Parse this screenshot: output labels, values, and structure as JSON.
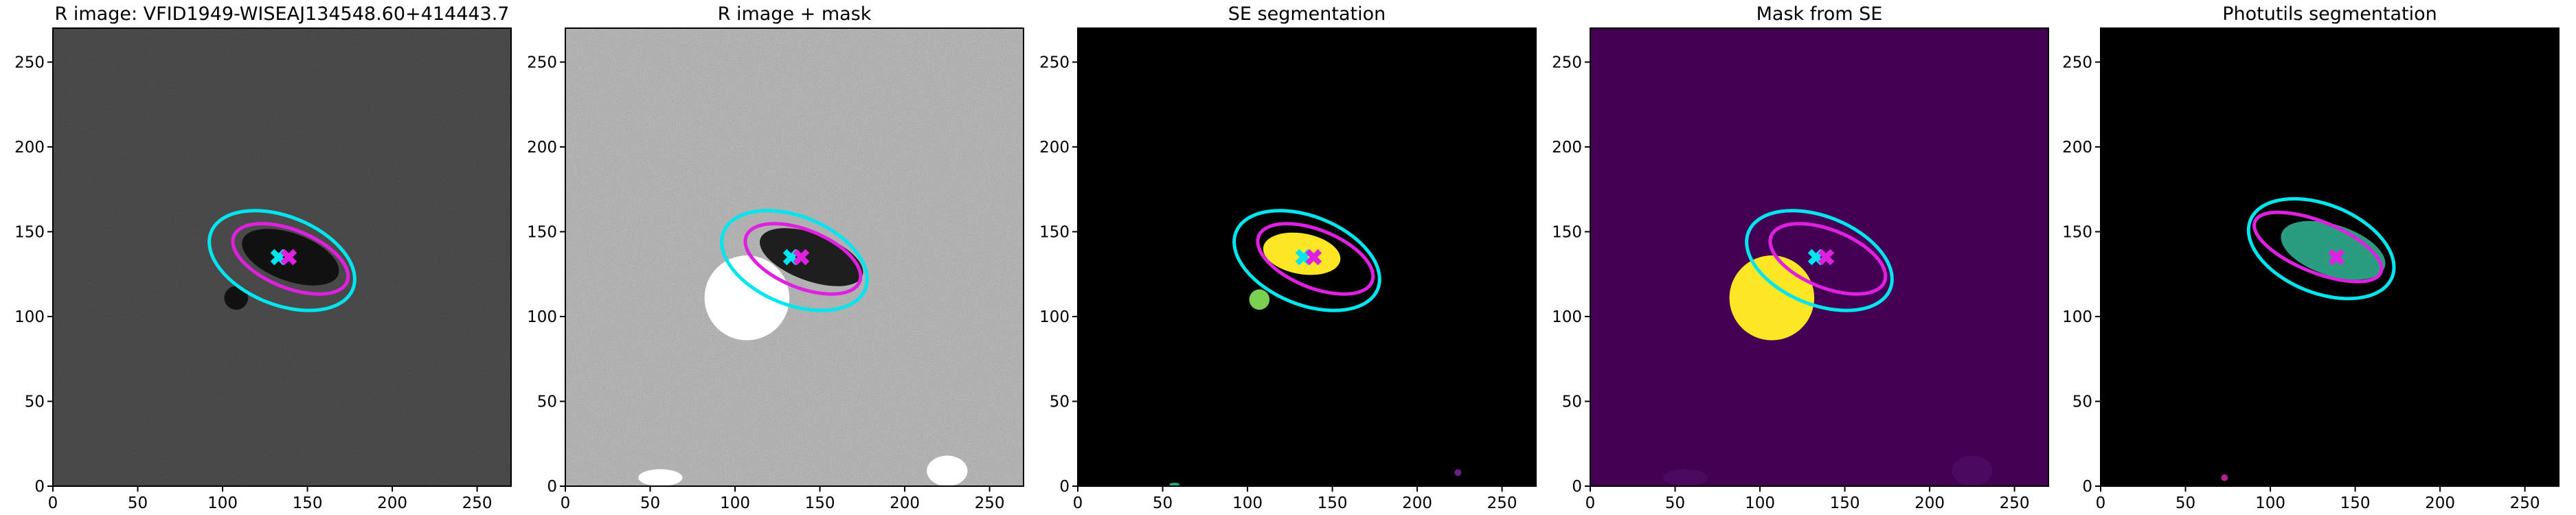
{
  "chart_data": [
    {
      "type": "image",
      "title": "R image: VFID1949-WISEAJ134548.60+414443.7",
      "background": "#3c3c3c",
      "noise": true,
      "xlim": [
        0,
        270
      ],
      "ylim": [
        0,
        270
      ],
      "xticks": [
        0,
        50,
        100,
        150,
        200,
        250
      ],
      "yticks": [
        0,
        50,
        100,
        150,
        200,
        250
      ],
      "regions": [
        {
          "cx": 140,
          "cy": 135,
          "rx": 30,
          "ry": 14,
          "angle": -20,
          "color": "#111111"
        },
        {
          "cx": 108,
          "cy": 111,
          "rx": 7,
          "ry": 7,
          "angle": 0,
          "color": "#111111"
        }
      ],
      "ellipses": [
        {
          "cx": 135,
          "cy": 133,
          "rx": 45,
          "ry": 26,
          "angle": -22,
          "color": "#00e5ee"
        },
        {
          "cx": 140,
          "cy": 134,
          "rx": 36,
          "ry": 17,
          "angle": -22,
          "color": "#e020e0"
        }
      ],
      "markers": [
        {
          "x": 133,
          "y": 135,
          "color": "#00e5ee"
        },
        {
          "x": 139,
          "y": 135,
          "color": "#e020e0"
        }
      ]
    },
    {
      "type": "image",
      "title": "R image + mask",
      "background": "#9c9c9c",
      "noise": true,
      "xlim": [
        0,
        270
      ],
      "ylim": [
        0,
        270
      ],
      "xticks": [
        0,
        50,
        100,
        150,
        200,
        250
      ],
      "yticks": [
        0,
        50,
        100,
        150,
        200,
        250
      ],
      "regions": [
        {
          "cx": 145,
          "cy": 135,
          "rx": 32,
          "ry": 14,
          "angle": -20,
          "color": "#1e1e1e"
        },
        {
          "cx": 107,
          "cy": 111,
          "rx": 25,
          "ry": 25,
          "angle": 0,
          "color": "#ffffff"
        },
        {
          "cx": 56,
          "cy": 5,
          "rx": 13,
          "ry": 5,
          "angle": 0,
          "color": "#ffffff"
        },
        {
          "cx": 225,
          "cy": 9,
          "rx": 12,
          "ry": 9,
          "angle": 0,
          "color": "#ffffff"
        }
      ],
      "ellipses": [
        {
          "cx": 135,
          "cy": 133,
          "rx": 45,
          "ry": 26,
          "angle": -22,
          "color": "#00e5ee"
        },
        {
          "cx": 140,
          "cy": 134,
          "rx": 36,
          "ry": 17,
          "angle": -22,
          "color": "#e020e0"
        }
      ],
      "markers": [
        {
          "x": 133,
          "y": 135,
          "color": "#00e5ee"
        },
        {
          "x": 139,
          "y": 135,
          "color": "#e020e0"
        }
      ]
    },
    {
      "type": "image",
      "title": "SE segmentation",
      "background": "#000000",
      "noise": false,
      "xlim": [
        0,
        270
      ],
      "ylim": [
        0,
        270
      ],
      "xticks": [
        0,
        50,
        100,
        150,
        200,
        250
      ],
      "yticks": [
        0,
        50,
        100,
        150,
        200,
        250
      ],
      "regions": [
        {
          "cx": 132,
          "cy": 137,
          "rx": 23,
          "ry": 12,
          "angle": -10,
          "color": "#fde725"
        },
        {
          "cx": 107,
          "cy": 110,
          "rx": 6,
          "ry": 6,
          "angle": 0,
          "color": "#7ad151"
        },
        {
          "cx": 57,
          "cy": 1,
          "rx": 3,
          "ry": 1,
          "angle": 0,
          "color": "#22a884"
        },
        {
          "cx": 224,
          "cy": 8,
          "rx": 2,
          "ry": 2,
          "angle": 0,
          "color": "#6a1f8a"
        }
      ],
      "ellipses": [
        {
          "cx": 135,
          "cy": 133,
          "rx": 45,
          "ry": 26,
          "angle": -22,
          "color": "#00e5ee"
        },
        {
          "cx": 140,
          "cy": 134,
          "rx": 36,
          "ry": 17,
          "angle": -22,
          "color": "#e020e0"
        }
      ],
      "markers": [
        {
          "x": 133,
          "y": 135,
          "color": "#00e5ee"
        },
        {
          "x": 139,
          "y": 135,
          "color": "#e020e0"
        }
      ]
    },
    {
      "type": "image",
      "title": "Mask from SE",
      "background": "#440154",
      "noise": false,
      "xlim": [
        0,
        270
      ],
      "ylim": [
        0,
        270
      ],
      "xticks": [
        0,
        50,
        100,
        150,
        200,
        250
      ],
      "yticks": [
        0,
        50,
        100,
        150,
        200,
        250
      ],
      "regions": [
        {
          "cx": 107,
          "cy": 111,
          "rx": 25,
          "ry": 25,
          "angle": 0,
          "color": "#fde725"
        },
        {
          "cx": 56,
          "cy": 5,
          "rx": 13,
          "ry": 5,
          "angle": 0,
          "color": "#4a0a5e"
        },
        {
          "cx": 225,
          "cy": 9,
          "rx": 12,
          "ry": 9,
          "angle": 0,
          "color": "#4a0a5e"
        }
      ],
      "ellipses": [
        {
          "cx": 135,
          "cy": 133,
          "rx": 45,
          "ry": 26,
          "angle": -22,
          "color": "#00e5ee"
        },
        {
          "cx": 140,
          "cy": 134,
          "rx": 36,
          "ry": 17,
          "angle": -22,
          "color": "#e020e0"
        }
      ],
      "markers": [
        {
          "x": 133,
          "y": 135,
          "color": "#00e5ee"
        },
        {
          "x": 139,
          "y": 135,
          "color": "#e020e0"
        }
      ]
    },
    {
      "type": "image",
      "title": "Photutils segmentation",
      "background": "#000000",
      "noise": false,
      "xlim": [
        0,
        270
      ],
      "ylim": [
        0,
        270
      ],
      "xticks": [
        0,
        50,
        100,
        150,
        200,
        250
      ],
      "yticks": [
        0,
        50,
        100,
        150,
        200,
        250
      ],
      "regions": [
        {
          "cx": 137,
          "cy": 139,
          "rx": 32,
          "ry": 15,
          "angle": -18,
          "color": "#2a9d80"
        },
        {
          "cx": 73,
          "cy": 5,
          "rx": 2,
          "ry": 2,
          "angle": 0,
          "color": "#b02090"
        }
      ],
      "ellipses": [
        {
          "cx": 130,
          "cy": 140,
          "rx": 45,
          "ry": 26,
          "angle": -22,
          "color": "#00e5ee"
        },
        {
          "cx": 128,
          "cy": 141,
          "rx": 40,
          "ry": 15,
          "angle": -22,
          "color": "#e020e0"
        }
      ],
      "markers": [
        {
          "x": 139,
          "y": 135,
          "color": "#e020e0"
        }
      ]
    }
  ]
}
